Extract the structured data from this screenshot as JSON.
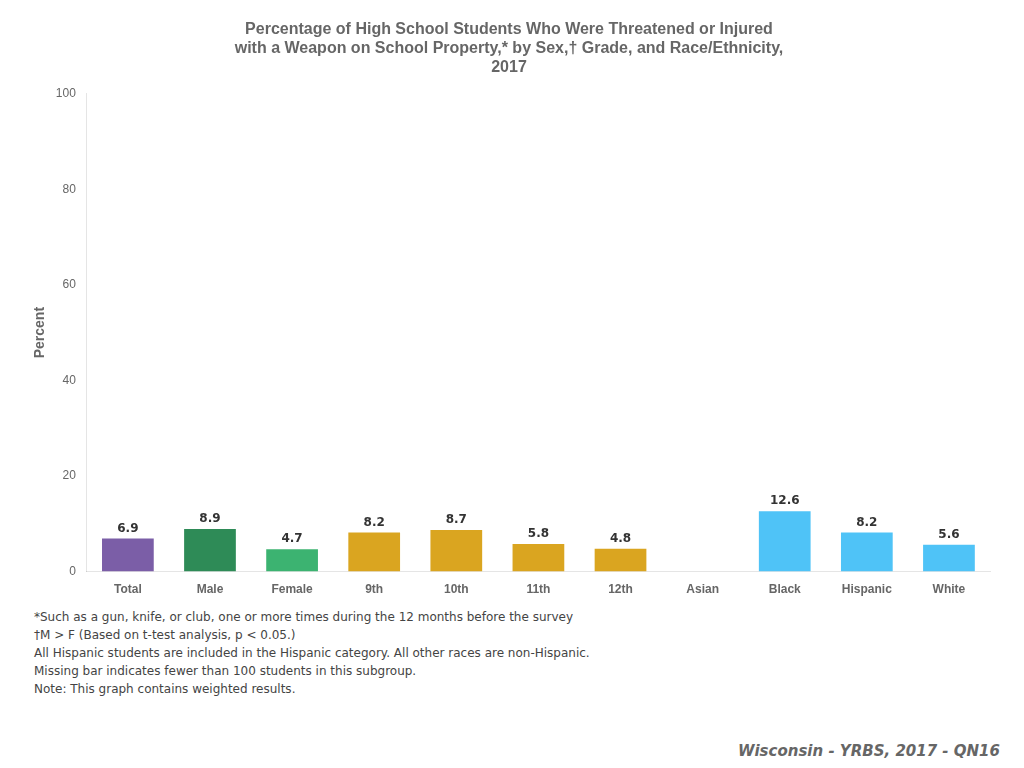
{
  "chart_data": {
    "type": "bar",
    "title": [
      "Percentage of High School Students Who Were Threatened or Injured",
      "with a Weapon on School Property,* by Sex,† Grade, and Race/Ethnicity,",
      "2017"
    ],
    "ylabel": "Percent",
    "categories": [
      "Total",
      "Male",
      "Female",
      "9th",
      "10th",
      "11th",
      "12th",
      "Asian",
      "Black",
      "Hispanic",
      "White"
    ],
    "values": [
      6.9,
      8.9,
      4.7,
      8.2,
      8.7,
      5.8,
      4.8,
      0,
      12.6,
      8.2,
      5.6
    ],
    "value_labels": [
      "6.9",
      "8.9",
      "4.7",
      "8.2",
      "8.7",
      "5.8",
      "4.8",
      null,
      "12.6",
      "8.2",
      "5.6"
    ],
    "data_labels": true,
    "colors": [
      "#7B5EA7",
      "#2E8B57",
      "#3CB371",
      "#DAA520",
      "#DAA520",
      "#DAA520",
      "#DAA520",
      "#4FC3F7",
      "#4FC3F7",
      "#4FC3F7",
      "#4FC3F7"
    ],
    "ylim": [
      0,
      100
    ],
    "yticks": [
      0,
      20,
      40,
      60,
      80,
      100
    ],
    "grid": false,
    "annotations": [
      "*Such as a gun, knife, or club, one or more times during the 12 months before the survey",
      "†M > F (Based on t-test analysis, p < 0.05.)",
      "All Hispanic students are included in the Hispanic category.  All other races are non-Hispanic.",
      "Missing bar indicates fewer than 100 students in this subgroup.",
      "Note: This graph contains weighted results."
    ],
    "watermark": "Wisconsin - YRBS, 2017 - QN16"
  }
}
